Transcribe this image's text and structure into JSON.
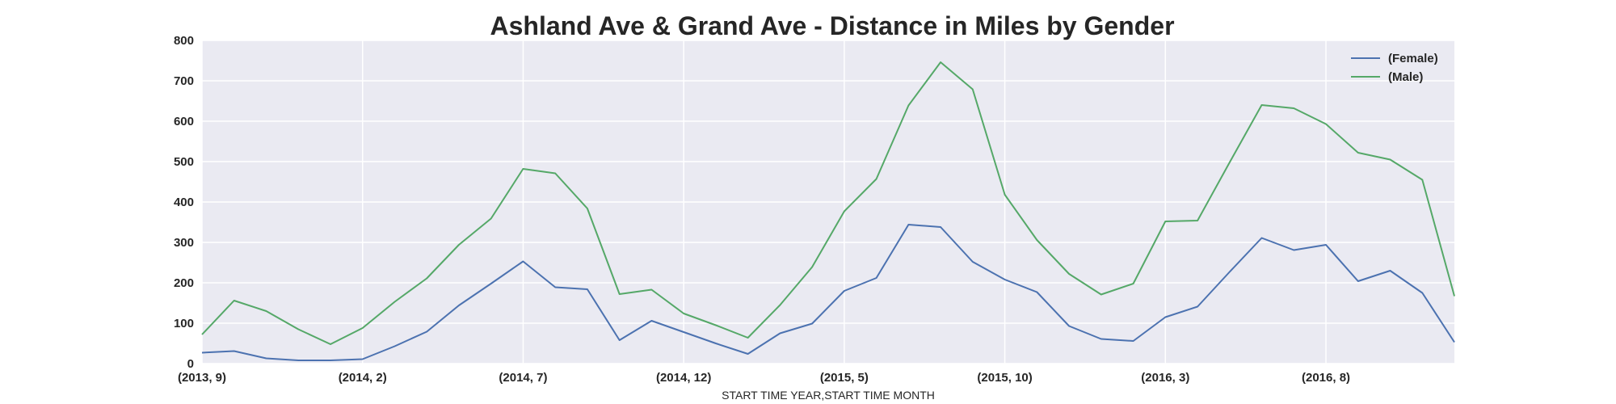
{
  "chart_data": {
    "type": "line",
    "title": "Ashland Ave & Grand Ave - Distance in Miles by Gender",
    "xlabel": "START TIME YEAR,START TIME MONTH",
    "ylabel": "",
    "ylim": [
      0,
      800
    ],
    "yticks": [
      "0",
      "100",
      "200",
      "300",
      "400",
      "500",
      "600",
      "700",
      "800"
    ],
    "x": [
      "(2013, 9)",
      "(2013, 10)",
      "(2013, 11)",
      "(2013, 12)",
      "(2014, 1)",
      "(2014, 2)",
      "(2014, 3)",
      "(2014, 4)",
      "(2014, 5)",
      "(2014, 6)",
      "(2014, 7)",
      "(2014, 8)",
      "(2014, 9)",
      "(2014, 10)",
      "(2014, 11)",
      "(2014, 12)",
      "(2015, 1)",
      "(2015, 2)",
      "(2015, 3)",
      "(2015, 4)",
      "(2015, 5)",
      "(2015, 6)",
      "(2015, 7)",
      "(2015, 8)",
      "(2015, 9)",
      "(2015, 10)",
      "(2015, 11)",
      "(2015, 12)",
      "(2016, 1)",
      "(2016, 2)",
      "(2016, 3)",
      "(2016, 4)",
      "(2016, 5)",
      "(2016, 6)",
      "(2016, 7)",
      "(2016, 8)",
      "(2016, 9)",
      "(2016, 10)",
      "(2016, 11)",
      "(2016, 12)"
    ],
    "xticks": [
      "(2013, 9)",
      "(2014, 2)",
      "(2014, 7)",
      "(2014, 12)",
      "(2015, 5)",
      "(2015, 10)",
      "(2016, 3)",
      "(2016, 8)"
    ],
    "grid": true,
    "legend_position": "top-right",
    "series": [
      {
        "name": "(Female)",
        "color": "#4c72b0",
        "values": [
          27,
          31,
          13,
          8,
          8,
          11,
          43,
          79,
          144,
          198,
          253,
          189,
          184,
          58,
          106,
          78,
          50,
          24,
          75,
          99,
          180,
          212,
          344,
          338,
          252,
          208,
          177,
          93,
          61,
          56,
          115,
          141,
          227,
          311,
          281,
          294,
          204,
          230,
          175,
          53
        ]
      },
      {
        "name": "(Male)",
        "color": "#55a868",
        "values": [
          72,
          156,
          130,
          85,
          48,
          88,
          153,
          211,
          294,
          359,
          482,
          471,
          384,
          172,
          183,
          124,
          95,
          64,
          145,
          239,
          377,
          457,
          639,
          746,
          679,
          418,
          306,
          222,
          171,
          198,
          352,
          354,
          498,
          640,
          632,
          593,
          522,
          505,
          455,
          167
        ]
      }
    ]
  }
}
